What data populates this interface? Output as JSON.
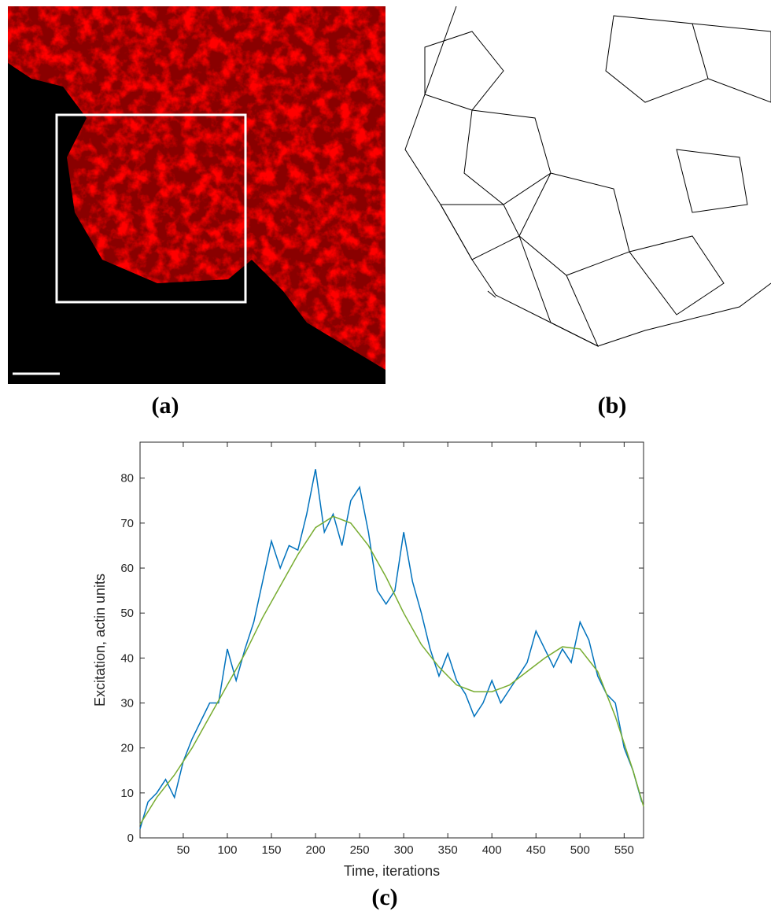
{
  "panels": {
    "a": "(a)",
    "b": "(b)",
    "c": "(c)"
  },
  "chart_data": {
    "type": "line",
    "xlabel": "Time, iterations",
    "ylabel": "Excitation, actin units",
    "xlim": [
      1,
      572
    ],
    "ylim": [
      0,
      88
    ],
    "xticks": [
      50,
      100,
      150,
      200,
      250,
      300,
      350,
      400,
      450,
      500,
      550
    ],
    "yticks": [
      0,
      10,
      20,
      30,
      40,
      50,
      60,
      70,
      80
    ],
    "series": [
      {
        "color": "#0072bd",
        "x": [
          1,
          10,
          20,
          30,
          40,
          50,
          60,
          70,
          80,
          90,
          100,
          110,
          120,
          130,
          140,
          150,
          160,
          170,
          180,
          190,
          200,
          210,
          220,
          230,
          240,
          250,
          260,
          270,
          280,
          290,
          300,
          310,
          320,
          330,
          340,
          350,
          360,
          370,
          380,
          390,
          400,
          410,
          420,
          430,
          440,
          450,
          460,
          470,
          480,
          490,
          500,
          510,
          520,
          530,
          540,
          550,
          560,
          570
        ],
        "values": [
          2,
          8,
          10,
          13,
          9,
          17,
          22,
          26,
          30,
          30,
          42,
          35,
          42,
          48,
          57,
          66,
          60,
          65,
          64,
          72,
          82,
          68,
          72,
          65,
          75,
          78,
          68,
          55,
          52,
          55,
          68,
          57,
          50,
          42,
          36,
          41,
          35,
          32,
          27,
          30,
          35,
          30,
          33,
          36,
          39,
          46,
          42,
          38,
          42,
          39,
          48,
          44,
          36,
          32,
          30,
          20,
          15,
          8
        ]
      },
      {
        "color": "#77ac30",
        "x": [
          1,
          20,
          40,
          60,
          80,
          100,
          120,
          140,
          160,
          180,
          200,
          220,
          240,
          260,
          280,
          300,
          320,
          340,
          360,
          380,
          400,
          420,
          440,
          460,
          480,
          500,
          520,
          540,
          560,
          572
        ],
        "values": [
          3,
          9,
          14,
          20,
          27,
          34,
          41,
          49,
          56,
          63,
          69,
          71.5,
          70,
          65,
          58,
          50,
          43,
          38,
          34,
          32.5,
          32.5,
          34,
          37,
          40,
          42.5,
          42,
          37,
          27,
          15,
          7
        ]
      }
    ]
  }
}
